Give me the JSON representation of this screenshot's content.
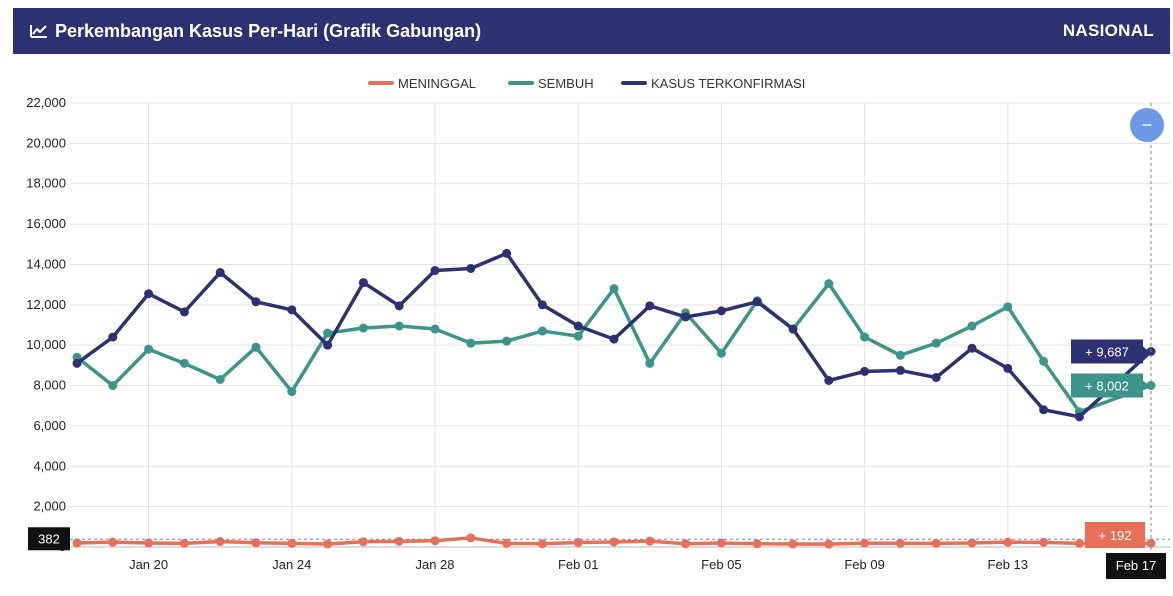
{
  "header": {
    "title": "Perkembangan Kasus Per-Hari (Grafik Gabungan)",
    "region": "NASIONAL",
    "icon": "line-chart-icon"
  },
  "zoom_button": {
    "label": "−",
    "icon": "zoom-out-icon",
    "color": "#6d98e6"
  },
  "crosshair": {
    "y_value_label": "382",
    "x_value_label": "Feb 17"
  },
  "chart_data": {
    "type": "line",
    "x_start": "Jan 18",
    "x": [
      "Jan 18",
      "Jan 19",
      "Jan 20",
      "Jan 21",
      "Jan 22",
      "Jan 23",
      "Jan 24",
      "Jan 25",
      "Jan 26",
      "Jan 27",
      "Jan 28",
      "Jan 29",
      "Jan 30",
      "Jan 31",
      "Feb 01",
      "Feb 02",
      "Feb 03",
      "Feb 04",
      "Feb 05",
      "Feb 06",
      "Feb 07",
      "Feb 08",
      "Feb 09",
      "Feb 10",
      "Feb 11",
      "Feb 12",
      "Feb 13",
      "Feb 14",
      "Feb 15",
      "Feb 16",
      "Feb 17"
    ],
    "x_tick_labels": [
      "Jan 20",
      "Jan 24",
      "Jan 28",
      "Feb 01",
      "Feb 05",
      "Feb 09",
      "Feb 13"
    ],
    "y_tick_labels": [
      "0",
      "2,000",
      "4,000",
      "6,000",
      "8,000",
      "10,000",
      "12,000",
      "14,000",
      "16,000",
      "18,000",
      "20,000",
      "22,000"
    ],
    "ylim": [
      0,
      22000
    ],
    "grid": true,
    "legend_position": "top-center",
    "series": [
      {
        "name": "MENINGGAL",
        "color": "#e8705a",
        "last_label": "+ 192",
        "values": [
          200,
          240,
          200,
          180,
          270,
          210,
          180,
          150,
          260,
          280,
          310,
          450,
          180,
          160,
          220,
          250,
          290,
          160,
          200,
          160,
          150,
          140,
          190,
          180,
          180,
          200,
          240,
          230,
          180,
          150,
          192
        ]
      },
      {
        "name": "SEMBUH",
        "color": "#3c948b",
        "last_label": "+ 8,002",
        "values": [
          9400,
          8000,
          9800,
          9100,
          8300,
          9900,
          7700,
          10600,
          10850,
          10950,
          10800,
          10100,
          10200,
          10700,
          10450,
          12800,
          9100,
          11600,
          9600,
          12200,
          10800,
          13050,
          10400,
          9500,
          10100,
          10950,
          11900,
          9200,
          6700,
          null,
          8002
        ]
      },
      {
        "name": "KASUS TERKONFIRMASI",
        "color": "#2b3171",
        "last_label": "+ 9,687",
        "values": [
          9100,
          10400,
          12550,
          11650,
          13600,
          12150,
          11750,
          10000,
          13100,
          11950,
          13700,
          13800,
          14550,
          12000,
          10950,
          10300,
          11950,
          11400,
          11700,
          12150,
          10800,
          8250,
          8700,
          8750,
          8400,
          9850,
          8850,
          6800,
          6450,
          null,
          9687
        ]
      }
    ]
  }
}
